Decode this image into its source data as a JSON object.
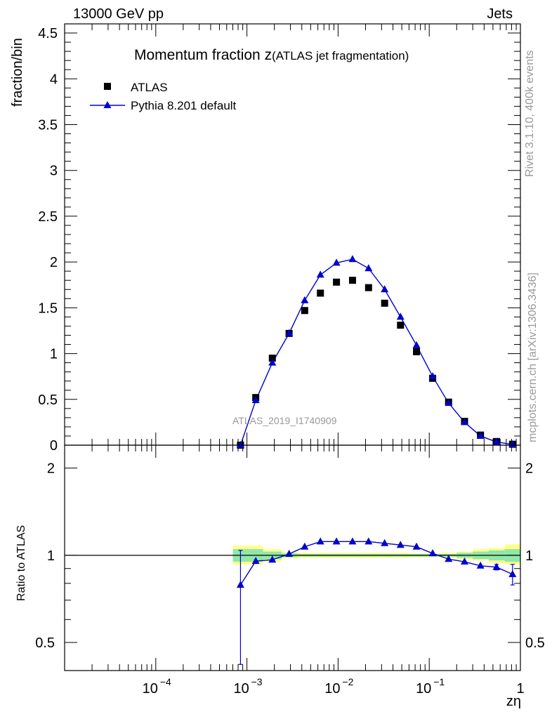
{
  "header": {
    "left": "13000 GeV pp",
    "right": "Jets"
  },
  "side_labels": {
    "rivet": "Rivet 3.1.10,  400k events",
    "mcplots": "mcplots.cern.ch [arXiv:1306.3436]"
  },
  "chart_data": {
    "type": "scatter",
    "title": "Momentum fraction z",
    "subtitle": "(ATLAS jet fragmentation)",
    "analysis_label": "ATLAS_2019_I1740909",
    "xlabel": "zη",
    "x_scale": "log",
    "xlim": [
      1e-05,
      1
    ],
    "x_tick_labels": [
      "10",
      "−4",
      "10",
      "−3",
      "10",
      "−2",
      "10",
      "−1",
      "1"
    ],
    "main": {
      "ylabel": "fraction/bin",
      "ylim": [
        0,
        4.6
      ],
      "y_tick_labels": [
        "0",
        "0.5",
        "1",
        "1.5",
        "2",
        "2.5",
        "3",
        "3.5",
        "4",
        "4.5"
      ],
      "legend_position": "top-left",
      "series": [
        {
          "name": "ATLAS",
          "marker": "square",
          "color": "#000000",
          "x": [
            0.00085,
            0.00125,
            0.0019,
            0.0029,
            0.0043,
            0.0064,
            0.0096,
            0.0144,
            0.0216,
            0.0324,
            0.0484,
            0.0725,
            0.109,
            0.163,
            0.244,
            0.365,
            0.547,
            0.82
          ],
          "y": [
            0.0,
            0.52,
            0.95,
            1.22,
            1.47,
            1.66,
            1.78,
            1.8,
            1.72,
            1.55,
            1.31,
            1.02,
            0.73,
            0.47,
            0.26,
            0.11,
            0.04,
            0.01
          ]
        },
        {
          "name": "Pythia 8.201 default",
          "marker": "triangle",
          "color": "#0000cc",
          "x": [
            0.00085,
            0.00125,
            0.0019,
            0.0029,
            0.0043,
            0.0064,
            0.0096,
            0.0144,
            0.0216,
            0.0324,
            0.0484,
            0.0725,
            0.109,
            0.163,
            0.244,
            0.365,
            0.547,
            0.82
          ],
          "y": [
            0.0,
            0.49,
            0.9,
            1.22,
            1.58,
            1.86,
            1.99,
            2.03,
            1.93,
            1.7,
            1.4,
            1.09,
            0.75,
            0.46,
            0.25,
            0.1,
            0.035,
            0.008
          ]
        }
      ]
    },
    "ratio": {
      "ylabel": "Ratio to ATLAS",
      "ylim": [
        0.4,
        2.4
      ],
      "scale": "log",
      "y_tick_labels": [
        "0.5",
        "1",
        "2"
      ],
      "reference_line": 1,
      "series": [
        {
          "name": "Pythia 8.201 default",
          "color": "#0000cc",
          "x": [
            0.00085,
            0.00125,
            0.0019,
            0.0029,
            0.0043,
            0.0064,
            0.0096,
            0.0144,
            0.0216,
            0.0324,
            0.0484,
            0.0725,
            0.109,
            0.163,
            0.244,
            0.365,
            0.547,
            0.82
          ],
          "y": [
            0.79,
            0.955,
            0.965,
            1.01,
            1.07,
            1.115,
            1.115,
            1.115,
            1.115,
            1.1,
            1.085,
            1.07,
            1.015,
            0.97,
            0.95,
            0.92,
            0.91,
            0.86
          ],
          "err_low": [
            0.37,
            0,
            0,
            0,
            0,
            0,
            0,
            0,
            0,
            0,
            0,
            0,
            0,
            0,
            0,
            0,
            0.02,
            0.07
          ],
          "err_high": [
            0.25,
            0,
            0,
            0,
            0,
            0,
            0,
            0,
            0,
            0,
            0,
            0,
            0,
            0,
            0,
            0,
            0.02,
            0.07
          ]
        }
      ],
      "uncertainty_bands": {
        "bin_edges": [
          0.0007,
          0.001,
          0.0015,
          0.0024,
          0.0036,
          0.0053,
          0.008,
          0.012,
          0.018,
          0.027,
          0.04,
          0.06,
          0.09,
          0.135,
          0.2,
          0.3,
          0.45,
          0.67,
          1.0
        ],
        "inner_color": "#8fe8a8",
        "outer_color": "#ffff88",
        "inner_low": [
          0.95,
          0.95,
          0.97,
          0.985,
          0.99,
          0.99,
          0.99,
          0.99,
          0.99,
          0.99,
          0.99,
          0.99,
          0.99,
          0.99,
          0.98,
          0.97,
          0.96,
          0.95
        ],
        "inner_high": [
          1.05,
          1.05,
          1.03,
          1.015,
          1.01,
          1.01,
          1.01,
          1.01,
          1.01,
          1.01,
          1.01,
          1.01,
          1.01,
          1.01,
          1.02,
          1.03,
          1.04,
          1.05
        ],
        "outer_low": [
          0.93,
          0.93,
          0.95,
          0.975,
          0.98,
          0.98,
          0.98,
          0.98,
          0.98,
          0.98,
          0.98,
          0.985,
          0.985,
          0.98,
          0.97,
          0.96,
          0.94,
          0.93
        ],
        "outer_high": [
          1.08,
          1.08,
          1.05,
          1.025,
          1.02,
          1.02,
          1.02,
          1.02,
          1.02,
          1.02,
          1.02,
          1.015,
          1.015,
          1.02,
          1.03,
          1.05,
          1.06,
          1.09
        ]
      }
    }
  }
}
